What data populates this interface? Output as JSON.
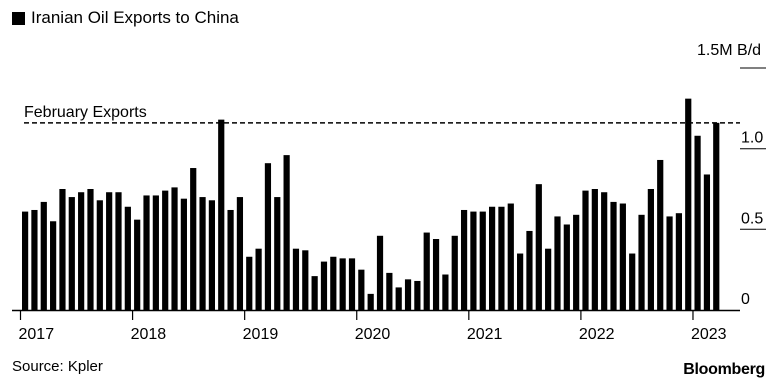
{
  "chart_data": {
    "type": "bar",
    "title": "Iranian Oil Exports to China",
    "unit_label": "1.5M B/d",
    "reference_line": {
      "label": "February Exports",
      "value": 1.16
    },
    "ylim": [
      0,
      1.5
    ],
    "yticks": [
      "1.0",
      "0.5",
      "0"
    ],
    "ytick_values": [
      1.0,
      0.5,
      0
    ],
    "xticks": [
      "2017",
      "2018",
      "2019",
      "2020",
      "2021",
      "2022",
      "2023"
    ],
    "start": "2017-01",
    "values": [
      0.61,
      0.62,
      0.67,
      0.55,
      0.75,
      0.7,
      0.73,
      0.75,
      0.68,
      0.73,
      0.73,
      0.64,
      0.56,
      0.71,
      0.71,
      0.74,
      0.76,
      0.69,
      0.88,
      0.7,
      0.68,
      1.18,
      0.62,
      0.7,
      0.33,
      0.38,
      0.91,
      0.7,
      0.96,
      0.38,
      0.37,
      0.21,
      0.3,
      0.33,
      0.32,
      0.32,
      0.25,
      0.1,
      0.46,
      0.23,
      0.14,
      0.19,
      0.18,
      0.48,
      0.44,
      0.22,
      0.46,
      0.62,
      0.61,
      0.61,
      0.64,
      0.64,
      0.66,
      0.35,
      0.49,
      0.78,
      0.38,
      0.58,
      0.53,
      0.59,
      0.74,
      0.75,
      0.73,
      0.67,
      0.66,
      0.35,
      0.59,
      0.75,
      0.93,
      0.58,
      0.6,
      1.31,
      1.08,
      0.84,
      1.16
    ],
    "grid": false,
    "legend": "top-left",
    "colors": {
      "bar": "#000000",
      "axis": "#000000",
      "reference_line": "#000000"
    }
  },
  "footer": {
    "source": "Source: Kpler",
    "brand": "Bloomberg"
  }
}
